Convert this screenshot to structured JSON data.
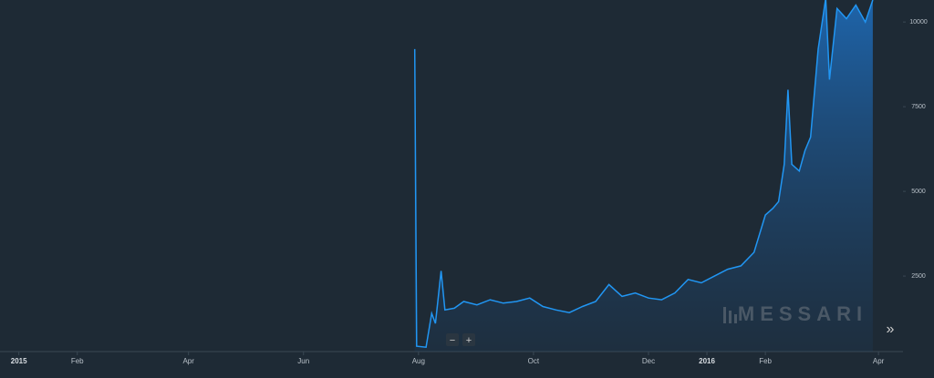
{
  "chart_data": {
    "type": "line",
    "watermark": "MESSARI",
    "controls": [
      "−",
      "+",
      "»"
    ],
    "series": [
      {
        "color": "#2196f3",
        "x": [
          "2015-07-30",
          "2015-07-31",
          "2015-08-05",
          "2015-08-08",
          "2015-08-10",
          "2015-08-13",
          "2015-08-15",
          "2015-08-20",
          "2015-08-25",
          "2015-09-01",
          "2015-09-08",
          "2015-09-15",
          "2015-09-22",
          "2015-09-29",
          "2015-10-06",
          "2015-10-13",
          "2015-10-20",
          "2015-10-27",
          "2015-11-03",
          "2015-11-10",
          "2015-11-17",
          "2015-11-24",
          "2015-12-01",
          "2015-12-08",
          "2015-12-15",
          "2015-12-22",
          "2015-12-29",
          "2016-01-05",
          "2016-01-12",
          "2016-01-19",
          "2016-01-26",
          "2016-02-01",
          "2016-02-05",
          "2016-02-08",
          "2016-02-11",
          "2016-02-13",
          "2016-02-15",
          "2016-02-19",
          "2016-02-22",
          "2016-02-25",
          "2016-02-29",
          "2016-03-04",
          "2016-03-06",
          "2016-03-10",
          "2016-03-15",
          "2016-03-20",
          "2016-03-25",
          "2016-03-29"
        ],
        "values": [
          9200,
          430,
          400,
          1400,
          1100,
          2650,
          1500,
          1550,
          1750,
          1650,
          1800,
          1700,
          1750,
          1850,
          1600,
          1500,
          1420,
          1600,
          1750,
          2250,
          1900,
          2000,
          1850,
          1800,
          2000,
          2400,
          2300,
          2500,
          2700,
          2800,
          3200,
          4300,
          4500,
          4700,
          5800,
          8000,
          5800,
          5600,
          6200,
          6600,
          9200,
          10700,
          8300,
          10400,
          10100,
          10500,
          10000,
          10650
        ]
      }
    ],
    "xlim": [
      "2014-12-22",
      "2016-04-14"
    ],
    "xticks": [
      {
        "value": "2015-01-01",
        "label": "2015"
      },
      {
        "value": "2015-02-01",
        "label": "Feb"
      },
      {
        "value": "2015-04-01",
        "label": "Apr"
      },
      {
        "value": "2015-06-01",
        "label": "Jun"
      },
      {
        "value": "2015-08-01",
        "label": "Aug"
      },
      {
        "value": "2015-10-01",
        "label": "Oct"
      },
      {
        "value": "2015-12-01",
        "label": "Dec"
      },
      {
        "value": "2016-01-01",
        "label": "2016"
      },
      {
        "value": "2016-02-01",
        "label": "Feb"
      },
      {
        "value": "2016-04-01",
        "label": "Apr"
      }
    ],
    "ylim": [
      270,
      10650
    ],
    "yticks": [
      2500,
      5000,
      7500,
      10000
    ],
    "grid": false
  }
}
